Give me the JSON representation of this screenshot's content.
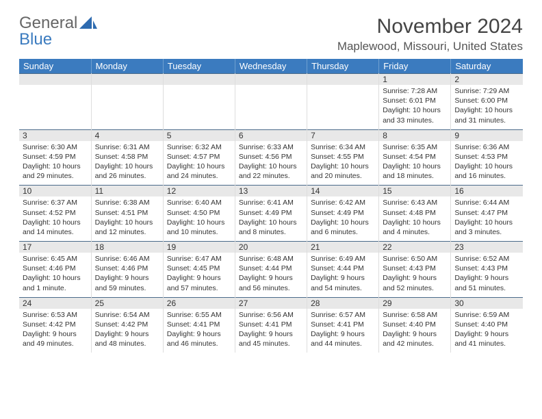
{
  "logo": {
    "part1": "General",
    "part2": "Blue"
  },
  "header": {
    "month_title": "November 2024",
    "location": "Maplewood, Missouri, United States"
  },
  "colors": {
    "header_bg": "#3b7bbf",
    "header_text": "#ffffff",
    "daynum_bg": "#e8e8e8",
    "daynum_border_top": "#4a6a8a",
    "cell_border": "#dddddd",
    "body_text": "#333333",
    "background": "#ffffff"
  },
  "day_headers": [
    "Sunday",
    "Monday",
    "Tuesday",
    "Wednesday",
    "Thursday",
    "Friday",
    "Saturday"
  ],
  "weeks": [
    [
      {
        "num": "",
        "sunrise": "",
        "sunset": "",
        "daylight": ""
      },
      {
        "num": "",
        "sunrise": "",
        "sunset": "",
        "daylight": ""
      },
      {
        "num": "",
        "sunrise": "",
        "sunset": "",
        "daylight": ""
      },
      {
        "num": "",
        "sunrise": "",
        "sunset": "",
        "daylight": ""
      },
      {
        "num": "",
        "sunrise": "",
        "sunset": "",
        "daylight": ""
      },
      {
        "num": "1",
        "sunrise": "Sunrise: 7:28 AM",
        "sunset": "Sunset: 6:01 PM",
        "daylight": "Daylight: 10 hours and 33 minutes."
      },
      {
        "num": "2",
        "sunrise": "Sunrise: 7:29 AM",
        "sunset": "Sunset: 6:00 PM",
        "daylight": "Daylight: 10 hours and 31 minutes."
      }
    ],
    [
      {
        "num": "3",
        "sunrise": "Sunrise: 6:30 AM",
        "sunset": "Sunset: 4:59 PM",
        "daylight": "Daylight: 10 hours and 29 minutes."
      },
      {
        "num": "4",
        "sunrise": "Sunrise: 6:31 AM",
        "sunset": "Sunset: 4:58 PM",
        "daylight": "Daylight: 10 hours and 26 minutes."
      },
      {
        "num": "5",
        "sunrise": "Sunrise: 6:32 AM",
        "sunset": "Sunset: 4:57 PM",
        "daylight": "Daylight: 10 hours and 24 minutes."
      },
      {
        "num": "6",
        "sunrise": "Sunrise: 6:33 AM",
        "sunset": "Sunset: 4:56 PM",
        "daylight": "Daylight: 10 hours and 22 minutes."
      },
      {
        "num": "7",
        "sunrise": "Sunrise: 6:34 AM",
        "sunset": "Sunset: 4:55 PM",
        "daylight": "Daylight: 10 hours and 20 minutes."
      },
      {
        "num": "8",
        "sunrise": "Sunrise: 6:35 AM",
        "sunset": "Sunset: 4:54 PM",
        "daylight": "Daylight: 10 hours and 18 minutes."
      },
      {
        "num": "9",
        "sunrise": "Sunrise: 6:36 AM",
        "sunset": "Sunset: 4:53 PM",
        "daylight": "Daylight: 10 hours and 16 minutes."
      }
    ],
    [
      {
        "num": "10",
        "sunrise": "Sunrise: 6:37 AM",
        "sunset": "Sunset: 4:52 PM",
        "daylight": "Daylight: 10 hours and 14 minutes."
      },
      {
        "num": "11",
        "sunrise": "Sunrise: 6:38 AM",
        "sunset": "Sunset: 4:51 PM",
        "daylight": "Daylight: 10 hours and 12 minutes."
      },
      {
        "num": "12",
        "sunrise": "Sunrise: 6:40 AM",
        "sunset": "Sunset: 4:50 PM",
        "daylight": "Daylight: 10 hours and 10 minutes."
      },
      {
        "num": "13",
        "sunrise": "Sunrise: 6:41 AM",
        "sunset": "Sunset: 4:49 PM",
        "daylight": "Daylight: 10 hours and 8 minutes."
      },
      {
        "num": "14",
        "sunrise": "Sunrise: 6:42 AM",
        "sunset": "Sunset: 4:49 PM",
        "daylight": "Daylight: 10 hours and 6 minutes."
      },
      {
        "num": "15",
        "sunrise": "Sunrise: 6:43 AM",
        "sunset": "Sunset: 4:48 PM",
        "daylight": "Daylight: 10 hours and 4 minutes."
      },
      {
        "num": "16",
        "sunrise": "Sunrise: 6:44 AM",
        "sunset": "Sunset: 4:47 PM",
        "daylight": "Daylight: 10 hours and 3 minutes."
      }
    ],
    [
      {
        "num": "17",
        "sunrise": "Sunrise: 6:45 AM",
        "sunset": "Sunset: 4:46 PM",
        "daylight": "Daylight: 10 hours and 1 minute."
      },
      {
        "num": "18",
        "sunrise": "Sunrise: 6:46 AM",
        "sunset": "Sunset: 4:46 PM",
        "daylight": "Daylight: 9 hours and 59 minutes."
      },
      {
        "num": "19",
        "sunrise": "Sunrise: 6:47 AM",
        "sunset": "Sunset: 4:45 PM",
        "daylight": "Daylight: 9 hours and 57 minutes."
      },
      {
        "num": "20",
        "sunrise": "Sunrise: 6:48 AM",
        "sunset": "Sunset: 4:44 PM",
        "daylight": "Daylight: 9 hours and 56 minutes."
      },
      {
        "num": "21",
        "sunrise": "Sunrise: 6:49 AM",
        "sunset": "Sunset: 4:44 PM",
        "daylight": "Daylight: 9 hours and 54 minutes."
      },
      {
        "num": "22",
        "sunrise": "Sunrise: 6:50 AM",
        "sunset": "Sunset: 4:43 PM",
        "daylight": "Daylight: 9 hours and 52 minutes."
      },
      {
        "num": "23",
        "sunrise": "Sunrise: 6:52 AM",
        "sunset": "Sunset: 4:43 PM",
        "daylight": "Daylight: 9 hours and 51 minutes."
      }
    ],
    [
      {
        "num": "24",
        "sunrise": "Sunrise: 6:53 AM",
        "sunset": "Sunset: 4:42 PM",
        "daylight": "Daylight: 9 hours and 49 minutes."
      },
      {
        "num": "25",
        "sunrise": "Sunrise: 6:54 AM",
        "sunset": "Sunset: 4:42 PM",
        "daylight": "Daylight: 9 hours and 48 minutes."
      },
      {
        "num": "26",
        "sunrise": "Sunrise: 6:55 AM",
        "sunset": "Sunset: 4:41 PM",
        "daylight": "Daylight: 9 hours and 46 minutes."
      },
      {
        "num": "27",
        "sunrise": "Sunrise: 6:56 AM",
        "sunset": "Sunset: 4:41 PM",
        "daylight": "Daylight: 9 hours and 45 minutes."
      },
      {
        "num": "28",
        "sunrise": "Sunrise: 6:57 AM",
        "sunset": "Sunset: 4:41 PM",
        "daylight": "Daylight: 9 hours and 44 minutes."
      },
      {
        "num": "29",
        "sunrise": "Sunrise: 6:58 AM",
        "sunset": "Sunset: 4:40 PM",
        "daylight": "Daylight: 9 hours and 42 minutes."
      },
      {
        "num": "30",
        "sunrise": "Sunrise: 6:59 AM",
        "sunset": "Sunset: 4:40 PM",
        "daylight": "Daylight: 9 hours and 41 minutes."
      }
    ]
  ]
}
